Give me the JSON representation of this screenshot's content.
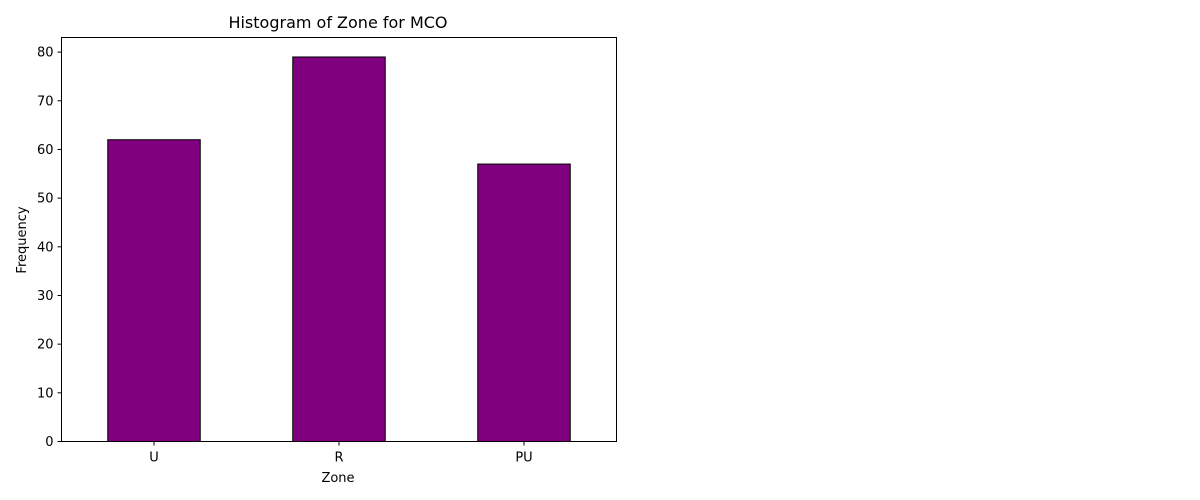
{
  "chart_data": {
    "type": "bar",
    "title": "Histogram of Zone for MCO",
    "xlabel": "Zone",
    "ylabel": "Frequency",
    "categories": [
      "U",
      "R",
      "PU"
    ],
    "values": [
      62,
      79,
      57
    ],
    "ylim": [
      0,
      83
    ],
    "yticks": [
      0,
      10,
      20,
      30,
      40,
      50,
      60,
      70,
      80
    ],
    "grid": false,
    "legend": "none",
    "colors": {
      "bar_fill": "#800080",
      "bar_edge": "#000000"
    }
  }
}
